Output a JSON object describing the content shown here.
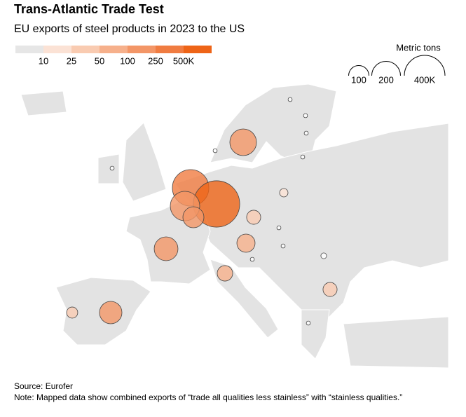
{
  "header": {
    "title": "Trans-Atlantic Trade Test",
    "subtitle": "EU exports of steel products in 2023 to the US"
  },
  "color_legend": {
    "stops": [
      10,
      25,
      50,
      100,
      250,
      {
        "value": 500,
        "label": "500K"
      }
    ],
    "colors": [
      "#e6e6e6",
      "#fbe2d5",
      "#f9cbb1",
      "#f6b08b",
      "#f39667",
      "#f07c41",
      "#ee6417"
    ]
  },
  "size_legend": {
    "title": "Metric tons",
    "ticks": [
      100,
      200,
      {
        "value": 400,
        "label": "400K"
      }
    ]
  },
  "bubbles": {
    "values": [
      172,
      322,
      520,
      210,
      107,
      137,
      80,
      48,
      58,
      122,
      30,
      48,
      17,
      4,
      4,
      4,
      4,
      4,
      4,
      4,
      4,
      4,
      8,
      4
    ]
  },
  "footer": {
    "source": "Source: Eurofer",
    "note": "Note: Mapped data show combined exports of “trade all qualities less stainless” with “stainless qualities.”"
  }
}
